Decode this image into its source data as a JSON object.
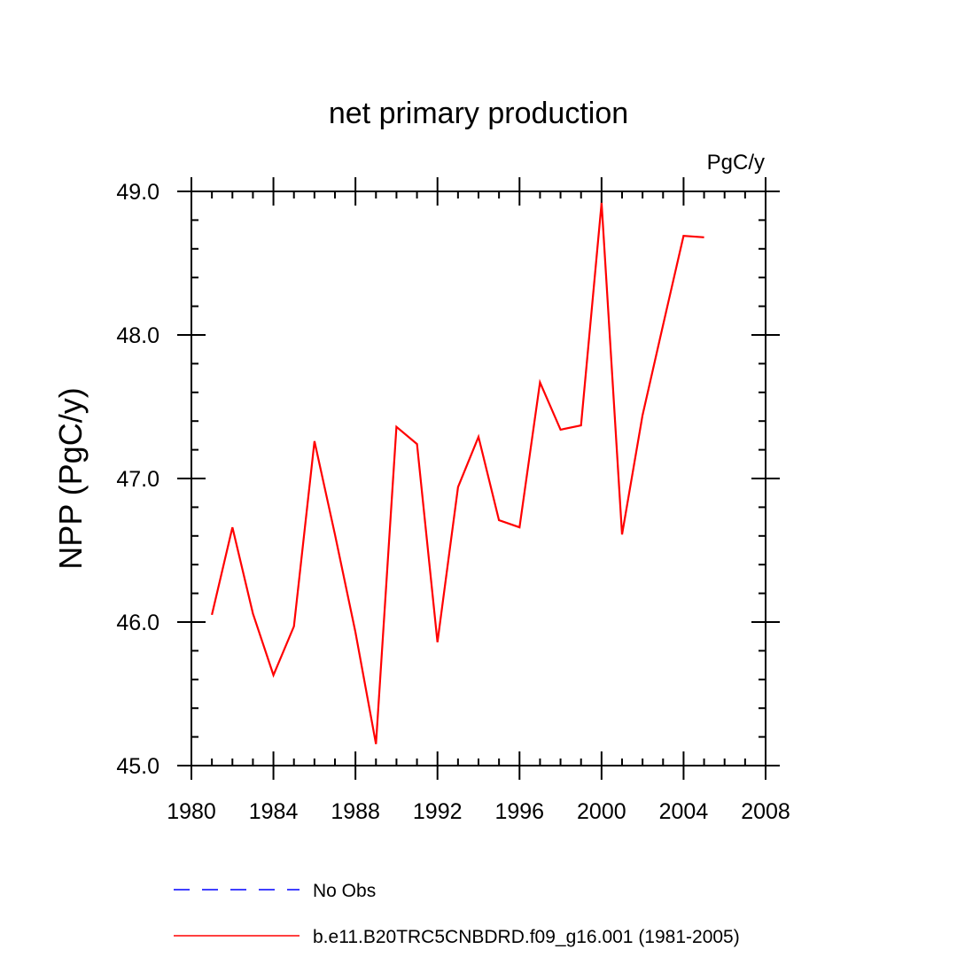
{
  "chart_data": {
    "type": "line",
    "title": "net primary production",
    "units_label": "PgC/y",
    "ylabel": "NPP  (PgC/y)",
    "xlabel": "",
    "xlim": [
      1980,
      2008
    ],
    "ylim": [
      45.0,
      49.0
    ],
    "x_ticks": [
      1980,
      1984,
      1988,
      1992,
      1996,
      2000,
      2004,
      2008
    ],
    "x_tick_labels": [
      "1980",
      "1984",
      "1988",
      "1992",
      "1996",
      "2000",
      "2004",
      "2008"
    ],
    "y_ticks": [
      45.0,
      46.0,
      47.0,
      48.0,
      49.0
    ],
    "y_tick_labels": [
      "45.0",
      "46.0",
      "47.0",
      "48.0",
      "49.0"
    ],
    "grid": false,
    "legend_position": "bottom",
    "series": [
      {
        "name": "No Obs",
        "color": "#0000ff",
        "dash": "dashed",
        "x": [],
        "values": []
      },
      {
        "name": "b.e11.B20TRC5CNBDRD.f09_g16.001 (1981-2005)",
        "color": "#ff0000",
        "dash": "solid",
        "x": [
          1981,
          1982,
          1983,
          1984,
          1985,
          1986,
          1987,
          1988,
          1989,
          1990,
          1991,
          1992,
          1993,
          1994,
          1995,
          1996,
          1997,
          1998,
          1999,
          2000,
          2001,
          2002,
          2003,
          2004,
          2005
        ],
        "values": [
          46.05,
          46.66,
          46.06,
          45.63,
          45.97,
          47.26,
          46.61,
          45.93,
          45.15,
          47.36,
          47.24,
          45.86,
          46.94,
          47.29,
          46.71,
          46.66,
          47.67,
          47.34,
          47.37,
          48.92,
          46.61,
          47.44,
          48.07,
          48.69,
          48.68
        ]
      }
    ]
  }
}
